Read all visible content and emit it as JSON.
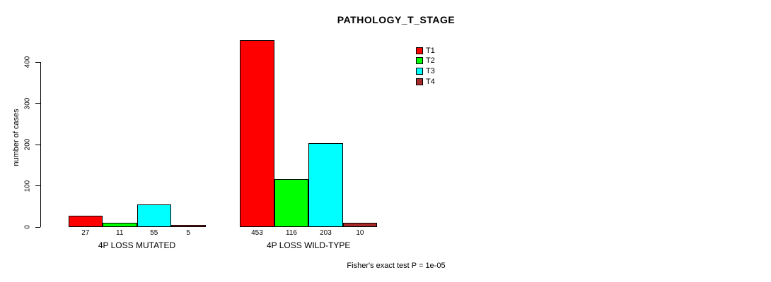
{
  "title": "PATHOLOGY_T_STAGE",
  "annotation": "Fisher's exact test P = 1e-05",
  "chart_data": {
    "type": "bar",
    "title": "PATHOLOGY_T_STAGE",
    "xlabel": "",
    "ylabel": "number of cases",
    "ylim": [
      0,
      400
    ],
    "yticks": [
      0,
      100,
      200,
      300,
      400
    ],
    "grid": false,
    "legend_position": "top-right",
    "categories": [
      "4P LOSS MUTATED",
      "4P LOSS WILD-TYPE"
    ],
    "series": [
      {
        "name": "T1",
        "color": "#FF0000",
        "values": [
          27,
          453
        ]
      },
      {
        "name": "T2",
        "color": "#00FF00",
        "values": [
          11,
          116
        ]
      },
      {
        "name": "T3",
        "color": "#00FFFF",
        "values": [
          55,
          203
        ]
      },
      {
        "name": "T4",
        "color": "#A52A2A",
        "values": [
          5,
          10
        ]
      }
    ],
    "bar_value_labels": [
      [
        27,
        11,
        55,
        5
      ],
      [
        453,
        116,
        203,
        10
      ]
    ],
    "annotation": "Fisher's exact test P = 1e-05"
  }
}
